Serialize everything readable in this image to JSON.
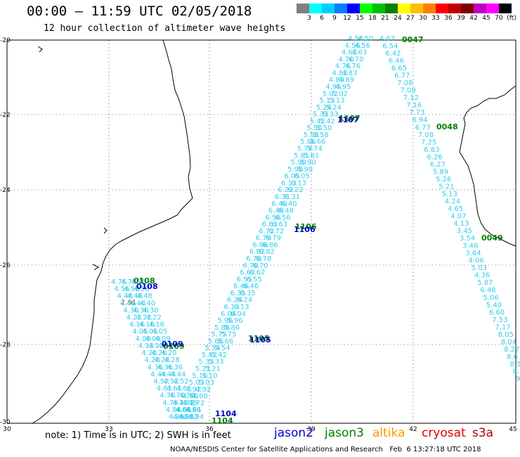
{
  "header": {
    "title": "00:00 – 11:59 UTC 02/05/2018",
    "subtitle": "12 hour collection of altimeter wave heights"
  },
  "colorbar": {
    "colors": [
      "#808080",
      "#00ffff",
      "#00cfff",
      "#0080ff",
      "#0000ff",
      "#00ff00",
      "#00c000",
      "#008000",
      "#ffff00",
      "#ffc000",
      "#ff8000",
      "#ff0000",
      "#c00000",
      "#800000",
      "#c000c0",
      "#ff00ff",
      "#000000"
    ],
    "labels": [
      "3",
      "6",
      "9",
      "12",
      "15",
      "18",
      "21",
      "24",
      "27",
      "30",
      "33",
      "36",
      "39",
      "42",
      "45",
      "70",
      "(ft)"
    ]
  },
  "axes": {
    "lat_labels": [
      "-20",
      "-22",
      "-24",
      "-26",
      "-28",
      "-30"
    ],
    "lon_labels": [
      "30",
      "33",
      "36",
      "39",
      "42",
      "45"
    ]
  },
  "tracks": {
    "track_a": {
      "color": "#33ccee",
      "values": [
        "4.75",
        "4.56",
        "4.48",
        "4.40",
        "4.30",
        "4.22",
        "4.16",
        "4.05",
        "4.09",
        "4.13",
        "4.20",
        "4.28",
        "4.36",
        "4.44",
        "4.52",
        "4.61",
        "4.70",
        "4.79",
        "4.86",
        "4.94"
      ]
    },
    "track_b": {
      "color": "#33ccee",
      "values": [
        "4.52",
        "4.61",
        "4.72",
        "4.80",
        "4.92",
        "5.03",
        "5.10",
        "5.21",
        "5.33",
        "5.42",
        "5.54",
        "5.66",
        "5.75",
        "5.86",
        "5.96",
        "6.04",
        "6.13",
        "6.24",
        "6.35",
        "6.46",
        "6.55",
        "6.62",
        "6.70",
        "6.78",
        "6.82",
        "6.86",
        "6.79",
        "6.72",
        "6.63",
        "6.56",
        "6.48",
        "6.40",
        "6.31",
        "6.22",
        "6.13",
        "6.05",
        "5.98",
        "5.90",
        "5.81",
        "5.74",
        "5.66",
        "5.58",
        "5.50",
        "5.42",
        "5.33",
        "5.24",
        "5.13",
        "5.02",
        "4.95",
        "4.89",
        "4.83",
        "4.76",
        "4.70",
        "4.63",
        "4.56",
        "4.50"
      ]
    },
    "track_c": {
      "color": "#33ccee",
      "values": [
        "4.67",
        "6.54",
        "6.42",
        "6.46",
        "6.65",
        "6.77",
        "7.08",
        "7.08",
        "7.12",
        "7.16",
        "7.73",
        "6.94",
        "6.77",
        "7.08",
        "7.25",
        "6.83",
        "6.26",
        "6.27",
        "5.89",
        "5.26",
        "5.21",
        "5.13",
        "4.24",
        "4.65",
        "4.07",
        "4.13",
        "3.45",
        "3.54",
        "3.46",
        "3.64",
        "4.06",
        "5.03",
        "4.36",
        "5.87",
        "6.48",
        "5.06",
        "5.40",
        "6.60",
        "7.53",
        "7.17",
        "8.05",
        "8.04",
        "8.27",
        "8.6",
        "8.5",
        "8.",
        "9."
      ]
    },
    "extra_value": {
      "text": "2.91",
      "color": "#888888"
    }
  },
  "time_labels": [
    {
      "text": "0047",
      "color": "#008000"
    },
    {
      "text": "1107",
      "color": "#008000"
    },
    {
      "text": "1107",
      "color": "#0000cc"
    },
    {
      "text": "0048",
      "color": "#008000"
    },
    {
      "text": "1106",
      "color": "#008000"
    },
    {
      "text": "1106",
      "color": "#0000cc"
    },
    {
      "text": "0049",
      "color": "#008000"
    },
    {
      "text": "0108",
      "color": "#008000"
    },
    {
      "text": "0108",
      "color": "#0000cc"
    },
    {
      "text": "0109",
      "color": "#008000"
    },
    {
      "text": "0109",
      "color": "#0000cc"
    },
    {
      "text": "1105",
      "color": "#008000"
    },
    {
      "text": "1105",
      "color": "#0000cc"
    },
    {
      "text": "1104",
      "color": "#0000cc"
    },
    {
      "text": "1104",
      "color": "#008000"
    }
  ],
  "footer": {
    "note": "note: 1) Time is in UTC; 2) SWH is in feet",
    "satellites": [
      {
        "name": "jason2",
        "color": "#0000cc"
      },
      {
        "name": "jason3",
        "color": "#008000"
      },
      {
        "name": "altika",
        "color": "#ff9900"
      },
      {
        "name": "cryosat",
        "color": "#dd0000"
      },
      {
        "name": "s3a",
        "color": "#aa0000"
      }
    ],
    "credit": "NOAA/NESDIS Center for Satellite Applications and Research   Feb  6 13:27:18 UTC 2018"
  }
}
